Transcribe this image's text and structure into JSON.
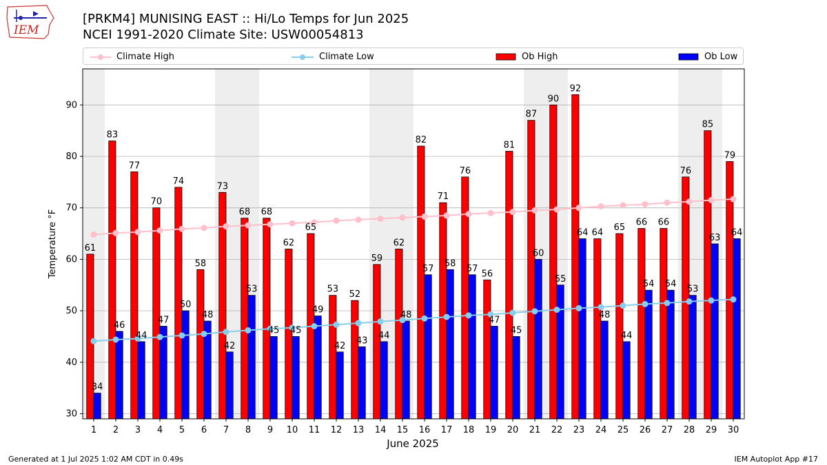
{
  "header": {
    "title_line1": "[PRKM4] MUNISING EAST :: Hi/Lo Temps for Jun 2025",
    "title_line2": "NCEI 1991-2020 Climate Site: USW00054813",
    "logo_text": "IEM"
  },
  "footer": {
    "generated": "Generated at 1 Jul 2025 1:02 AM CDT in 0.49s",
    "app": "IEM Autoplot App #17"
  },
  "legend": [
    {
      "label": "Climate High",
      "kind": "line",
      "color": "#ffc0cb"
    },
    {
      "label": "Climate Low",
      "kind": "line",
      "color": "#87ceeb"
    },
    {
      "label": "Ob High",
      "kind": "bar",
      "color": "#ff0000"
    },
    {
      "label": "Ob Low",
      "kind": "bar",
      "color": "#0000ff"
    }
  ],
  "chart_data": {
    "type": "bar",
    "xlabel": "June 2025",
    "ylabel": "Temperature °F",
    "ylim": [
      29,
      97
    ],
    "yticks": [
      30,
      40,
      50,
      60,
      70,
      80,
      90
    ],
    "grid": true,
    "legend_position": "top",
    "weekend_shading_days": [
      1,
      7,
      8,
      14,
      15,
      21,
      22,
      28,
      29
    ],
    "categories": [
      1,
      2,
      3,
      4,
      5,
      6,
      7,
      8,
      9,
      10,
      11,
      12,
      13,
      14,
      15,
      16,
      17,
      18,
      19,
      20,
      21,
      22,
      23,
      24,
      25,
      26,
      27,
      28,
      29,
      30
    ],
    "series": [
      {
        "name": "Ob High",
        "kind": "bar",
        "color": "#ff0000",
        "values": [
          61,
          83,
          77,
          70,
          74,
          58,
          73,
          68,
          68,
          62,
          65,
          53,
          52,
          59,
          62,
          82,
          71,
          76,
          56,
          81,
          87,
          90,
          92,
          64,
          65,
          66,
          66,
          76,
          85,
          79
        ]
      },
      {
        "name": "Ob Low",
        "kind": "bar",
        "color": "#0000ff",
        "values": [
          34,
          46,
          44,
          47,
          50,
          48,
          42,
          53,
          45,
          45,
          49,
          42,
          43,
          44,
          48,
          57,
          58,
          57,
          47,
          45,
          60,
          55,
          64,
          48,
          44,
          54,
          54,
          53,
          63,
          64
        ]
      },
      {
        "name": "Climate High",
        "kind": "line",
        "color": "#ffc0cb",
        "values": [
          64.8,
          65.1,
          65.3,
          65.6,
          65.9,
          66.1,
          66.4,
          66.6,
          66.8,
          67.0,
          67.2,
          67.5,
          67.7,
          67.9,
          68.1,
          68.3,
          68.5,
          68.8,
          69.0,
          69.2,
          69.5,
          69.7,
          70.0,
          70.3,
          70.5,
          70.7,
          71.0,
          71.2,
          71.5,
          71.7
        ]
      },
      {
        "name": "Climate Low",
        "kind": "line",
        "color": "#87ceeb",
        "values": [
          44.1,
          44.4,
          44.6,
          44.9,
          45.2,
          45.5,
          45.9,
          46.2,
          46.5,
          46.7,
          47.0,
          47.3,
          47.6,
          47.9,
          48.2,
          48.5,
          48.8,
          49.1,
          49.3,
          49.6,
          49.9,
          50.2,
          50.5,
          50.7,
          51.0,
          51.3,
          51.5,
          51.8,
          52.0,
          52.2
        ]
      }
    ]
  }
}
